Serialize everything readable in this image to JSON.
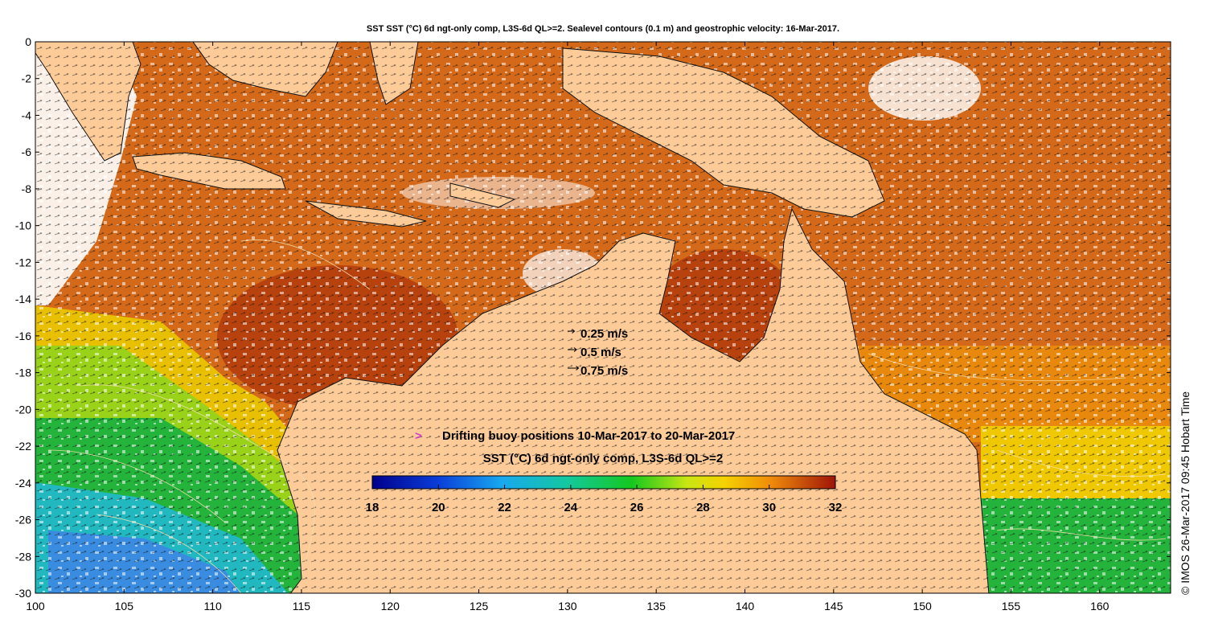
{
  "title": "SST SST (°C) 6d ngt-only comp, L3S-6d QL>=2. Sealevel contours (0.1 m) and geostrophic velocity: 16-Mar-2017.",
  "side_label": "© IMOS 26-Mar-2017 09:45 Hobart Time",
  "axes": {
    "x_ticks": [
      "100",
      "105",
      "110",
      "115",
      "120",
      "125",
      "130",
      "135",
      "140",
      "145",
      "150",
      "155",
      "160"
    ],
    "x_range": [
      100,
      164
    ],
    "y_ticks": [
      "0",
      "-2",
      "-4",
      "-6",
      "-8",
      "-10",
      "-12",
      "-14",
      "-16",
      "-18",
      "-20",
      "-22",
      "-24",
      "-26",
      "-28",
      "-30"
    ],
    "y_range": [
      -30,
      0
    ]
  },
  "velocity_legend": [
    {
      "value": 0.25,
      "label": "0.25 m/s"
    },
    {
      "value": 0.5,
      "label": "0.5 m/s"
    },
    {
      "value": 0.75,
      "label": "0.75 m/s"
    }
  ],
  "buoy_legend": {
    "symbol": ">",
    "label": "Drifting buoy positions 10-Mar-2017 to 20-Mar-2017",
    "color": "#d040d0"
  },
  "colorbar": {
    "title": "SST (°C) 6d ngt-only comp, L3S-6d QL>=2",
    "ticks": [
      "18",
      "20",
      "22",
      "24",
      "26",
      "28",
      "30",
      "32"
    ],
    "range": [
      18,
      32
    ]
  },
  "colors": {
    "land": "#fccb98",
    "ocean_warm": "#d4691a",
    "ocean_hot": "#b8420e",
    "ocean_orange": "#e8880c",
    "ocean_yellow": "#f0c800",
    "ocean_green": "#24b43c",
    "ocean_cyan": "#22b8c0",
    "ocean_blue": "#3a8ce0",
    "cloud": "#ffffff"
  }
}
